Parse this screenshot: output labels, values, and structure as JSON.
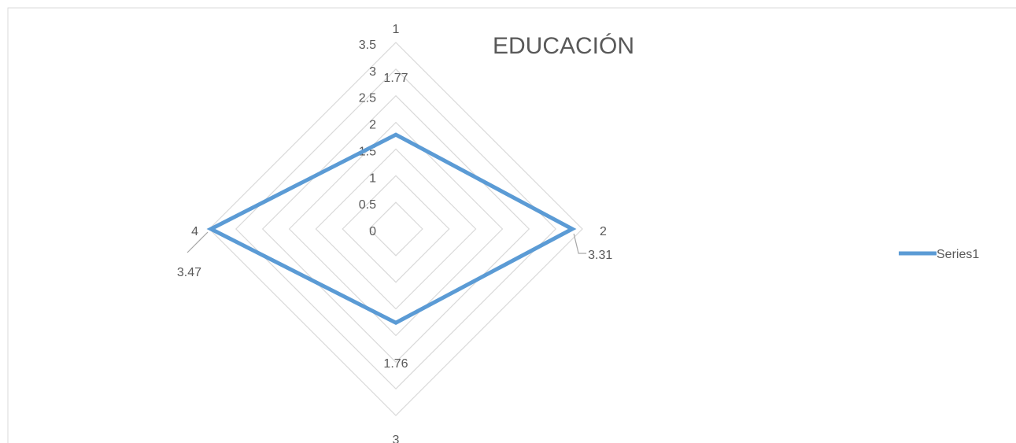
{
  "chart_data": {
    "type": "radar",
    "title": "EDUCACIÓN",
    "categories": [
      "1",
      "2",
      "3",
      "4"
    ],
    "series": [
      {
        "name": "Series1",
        "values": [
          1.77,
          3.31,
          1.76,
          3.47
        ],
        "color": "#5B9BD5"
      }
    ],
    "data_labels": [
      "1.77",
      "3.31",
      "1.76",
      "3.47"
    ],
    "radial_ticks": [
      "0",
      "0.5",
      "1",
      "1.5",
      "2",
      "2.5",
      "3",
      "3.5"
    ],
    "radial_range": [
      0,
      3.5
    ],
    "grid": true,
    "grid_color": "#D9D9D9",
    "text_color": "#595959",
    "legend_position": "right"
  }
}
